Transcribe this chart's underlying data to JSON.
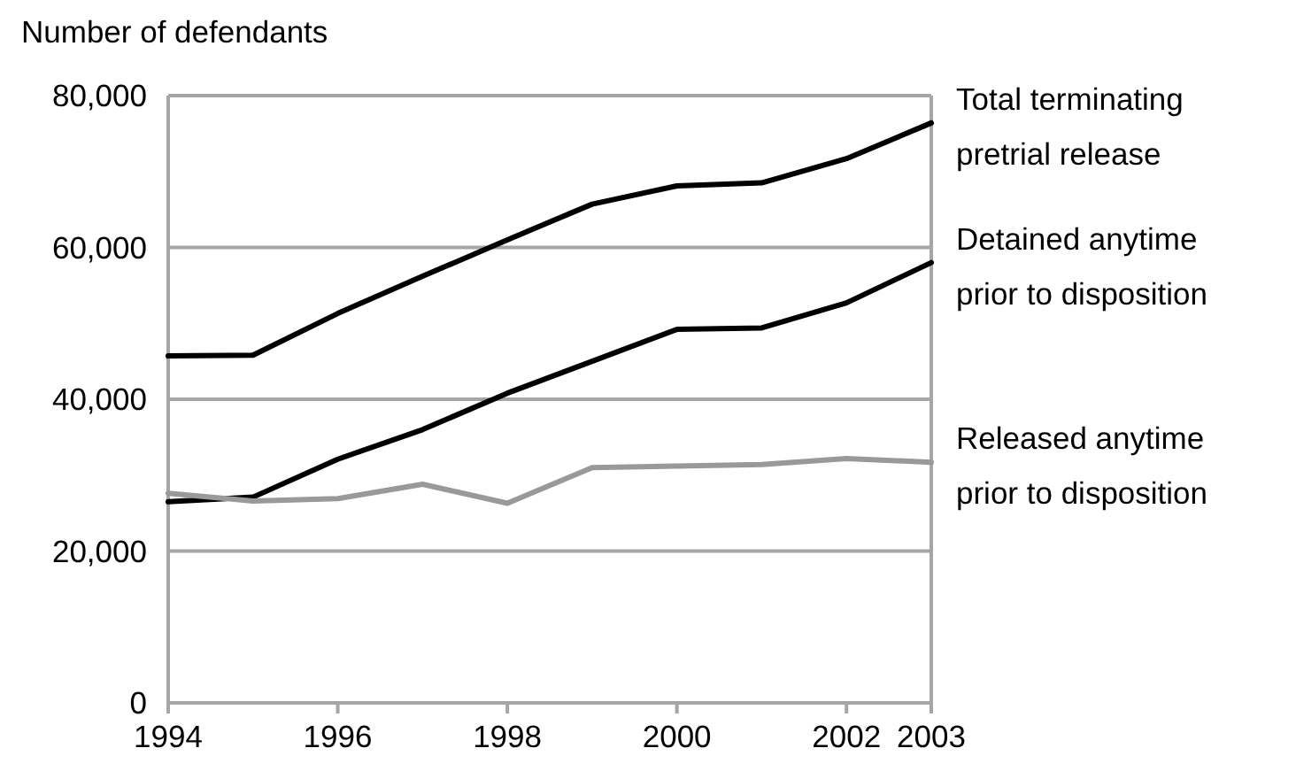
{
  "chart_data": {
    "type": "line",
    "ylabel": "Number of defendants",
    "x": [
      1994,
      1995,
      1996,
      1997,
      1998,
      1999,
      2000,
      2001,
      2002,
      2003
    ],
    "xlim": [
      1994,
      2003
    ],
    "xticks": [
      1994,
      1996,
      1998,
      2000,
      2002,
      2003
    ],
    "ylim": [
      0,
      80000
    ],
    "yticks": [
      {
        "value": 0,
        "label": "0"
      },
      {
        "value": 20000,
        "label": "20,000"
      },
      {
        "value": 40000,
        "label": "40,000"
      },
      {
        "value": 60000,
        "label": "60,000"
      },
      {
        "value": 80000,
        "label": "80,000"
      }
    ],
    "grid": "y",
    "legend": false,
    "marker": "none",
    "line_style": "solid",
    "series": [
      {
        "name": "Total terminating pretrial release",
        "color": "#000000",
        "values": [
          45700,
          45800,
          51300,
          56200,
          61000,
          65700,
          68100,
          68500,
          71700,
          76400
        ]
      },
      {
        "name": "Detained anytime prior to disposition",
        "color": "#000000",
        "values": [
          26500,
          27100,
          32100,
          36000,
          40800,
          45000,
          49200,
          49400,
          52700,
          58000
        ]
      },
      {
        "name": "Released anytime prior to disposition",
        "color": "#999999",
        "values": [
          27600,
          26600,
          26900,
          28800,
          26300,
          31000,
          31200,
          31400,
          32200,
          31700
        ]
      }
    ]
  }
}
